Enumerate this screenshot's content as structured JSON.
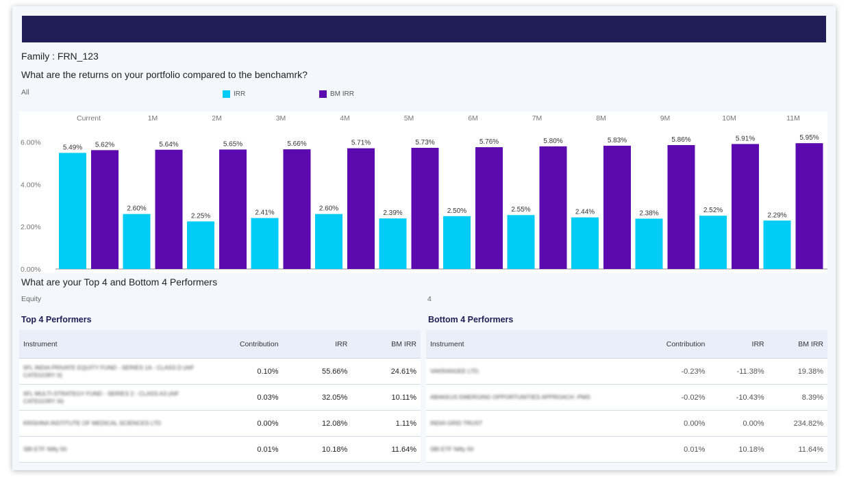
{
  "header": {
    "family_label": "Family : FRN_123"
  },
  "returns_section": {
    "question": "What are the returns on your portfolio compared to the benchamrk?",
    "filter": "All"
  },
  "colors": {
    "irr": "#00ccf5",
    "bm_irr": "#5a0aaf",
    "banner": "#1f1e57",
    "title_text": "#1f1e57"
  },
  "chart_data": {
    "type": "bar",
    "categories": [
      "Current",
      "1M",
      "2M",
      "3M",
      "4M",
      "5M",
      "6M",
      "7M",
      "8M",
      "9M",
      "10M",
      "11M"
    ],
    "series": [
      {
        "name": "IRR",
        "values": [
          5.49,
          2.6,
          2.25,
          2.41,
          2.6,
          2.39,
          2.5,
          2.55,
          2.44,
          2.38,
          2.52,
          2.29
        ],
        "labels": [
          "5.49%",
          "2.60%",
          "2.25%",
          "2.41%",
          "2.60%",
          "2.39%",
          "2.50%",
          "2.55%",
          "2.44%",
          "2.38%",
          "2.52%",
          "2.29%"
        ]
      },
      {
        "name": "BM IRR",
        "values": [
          5.62,
          5.64,
          5.65,
          5.66,
          5.71,
          5.73,
          5.76,
          5.8,
          5.83,
          5.86,
          5.91,
          5.95
        ],
        "labels": [
          "5.62%",
          "5.64%",
          "5.65%",
          "5.66%",
          "5.71%",
          "5.73%",
          "5.76%",
          "5.80%",
          "5.83%",
          "5.86%",
          "5.91%",
          "5.95%"
        ]
      }
    ],
    "yticks": [
      0,
      2,
      4,
      6
    ],
    "ytick_labels": [
      "0.00%",
      "2.00%",
      "4.00%",
      "6.00%"
    ],
    "ylim": [
      0,
      6.15
    ],
    "legend": "top-center",
    "grid": false,
    "category_axis_position": "top"
  },
  "performers_section": {
    "title": "What are your Top 4 and Bottom 4 Performers",
    "left_filter": "Equity",
    "right_filter": "4"
  },
  "top_table": {
    "title": "Top 4 Performers",
    "headers": {
      "instrument": "Instrument",
      "contribution": "Contribution",
      "irr": "IRR",
      "bm_irr": "BM IRR"
    },
    "rows": [
      {
        "instrument": "IIFL INDIA PRIVATE EQUITY FUND - SERIES 1A - CLASS D (AIF CATEGORY II)",
        "contribution": "0.10%",
        "irr": "55.66%",
        "bm_irr": "24.61%"
      },
      {
        "instrument": "IIFL MULTI-STRATEGY FUND - SERIES 2 - CLASS A3 (AIF CATEGORY III)",
        "contribution": "0.03%",
        "irr": "32.05%",
        "bm_irr": "10.11%"
      },
      {
        "instrument": "KRISHNA INSTITUTE OF MEDICAL SCIENCES LTD",
        "contribution": "0.00%",
        "irr": "12.08%",
        "bm_irr": "1.11%"
      },
      {
        "instrument": "SBI ETF Nifty 50",
        "contribution": "0.01%",
        "irr": "10.18%",
        "bm_irr": "11.64%"
      }
    ]
  },
  "bottom_table": {
    "title": "Bottom 4 Performers",
    "headers": {
      "instrument": "Instrument",
      "contribution": "Contribution",
      "irr": "IRR",
      "bm_irr": "BM IRR"
    },
    "rows": [
      {
        "instrument": "VAKRANGEE LTD.",
        "contribution": "-0.23%",
        "irr": "-11.38%",
        "bm_irr": "19.38%"
      },
      {
        "instrument": "ABAKKUS EMERGING OPPORTUNITIES APPROACH -PMS",
        "contribution": "-0.02%",
        "irr": "-10.43%",
        "bm_irr": "8.39%"
      },
      {
        "instrument": "INDIA GRID TRUST",
        "contribution": "0.00%",
        "irr": "0.00%",
        "bm_irr": "234.82%"
      },
      {
        "instrument": "SBI ETF Nifty 50",
        "contribution": "0.01%",
        "irr": "10.18%",
        "bm_irr": "11.64%"
      }
    ]
  }
}
